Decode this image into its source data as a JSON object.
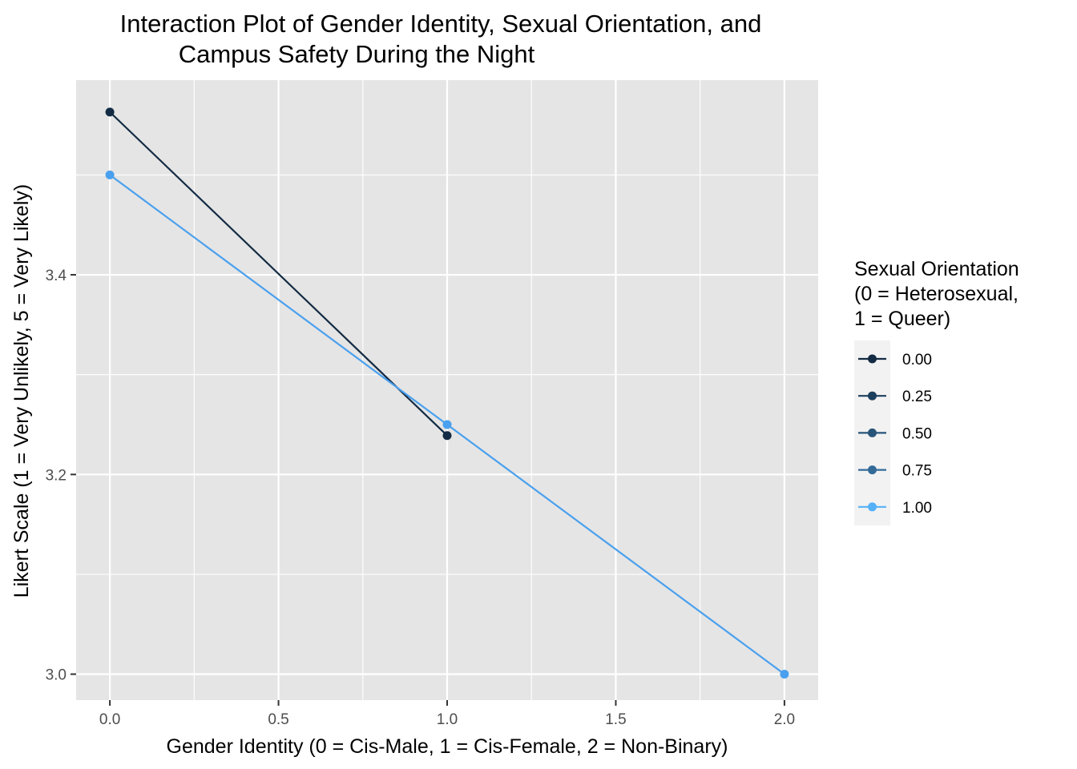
{
  "chart_data": {
    "type": "line",
    "title_lines": [
      "Interaction Plot of Gender Identity, Sexual Orientation, and",
      "Campus Safety During the Night"
    ],
    "xlabel": "Gender Identity (0 = Cis-Male, 1 = Cis-Female, 2 = Non-Binary)",
    "ylabel": "Likert Scale (1 = Very Unlikely, 5 = Very Likely)",
    "xlim": [
      -0.1,
      2.1
    ],
    "ylim": [
      2.974,
      3.595
    ],
    "x_ticks": [
      0,
      0.5,
      1,
      1.5,
      2
    ],
    "x_tick_labels": [
      "0.0",
      "0.5",
      "1.0",
      "1.5",
      "2.0"
    ],
    "y_ticks": [
      3.0,
      3.2,
      3.4
    ],
    "y_tick_labels": [
      "3.0",
      "3.2",
      "3.4"
    ],
    "grid": true,
    "legend": {
      "title_lines": [
        "Sexual Orientation",
        "(0 = Heterosexual,",
        "1 = Queer)"
      ],
      "placement": "right",
      "entries": [
        {
          "label": "0.00",
          "color": "#132b43"
        },
        {
          "label": "0.25",
          "color": "#1d3f5e"
        },
        {
          "label": "0.50",
          "color": "#285479"
        },
        {
          "label": "0.75",
          "color": "#336a98"
        },
        {
          "label": "1.00",
          "color": "#56b1f7"
        }
      ]
    },
    "series": [
      {
        "name": "0.00",
        "color": "#132b43",
        "x": [
          0,
          1
        ],
        "y": [
          3.563,
          3.239
        ]
      },
      {
        "name": "1.00",
        "color": "#4aa0ee",
        "x": [
          0,
          1,
          2
        ],
        "y": [
          3.5,
          3.25,
          3.0
        ]
      }
    ]
  }
}
